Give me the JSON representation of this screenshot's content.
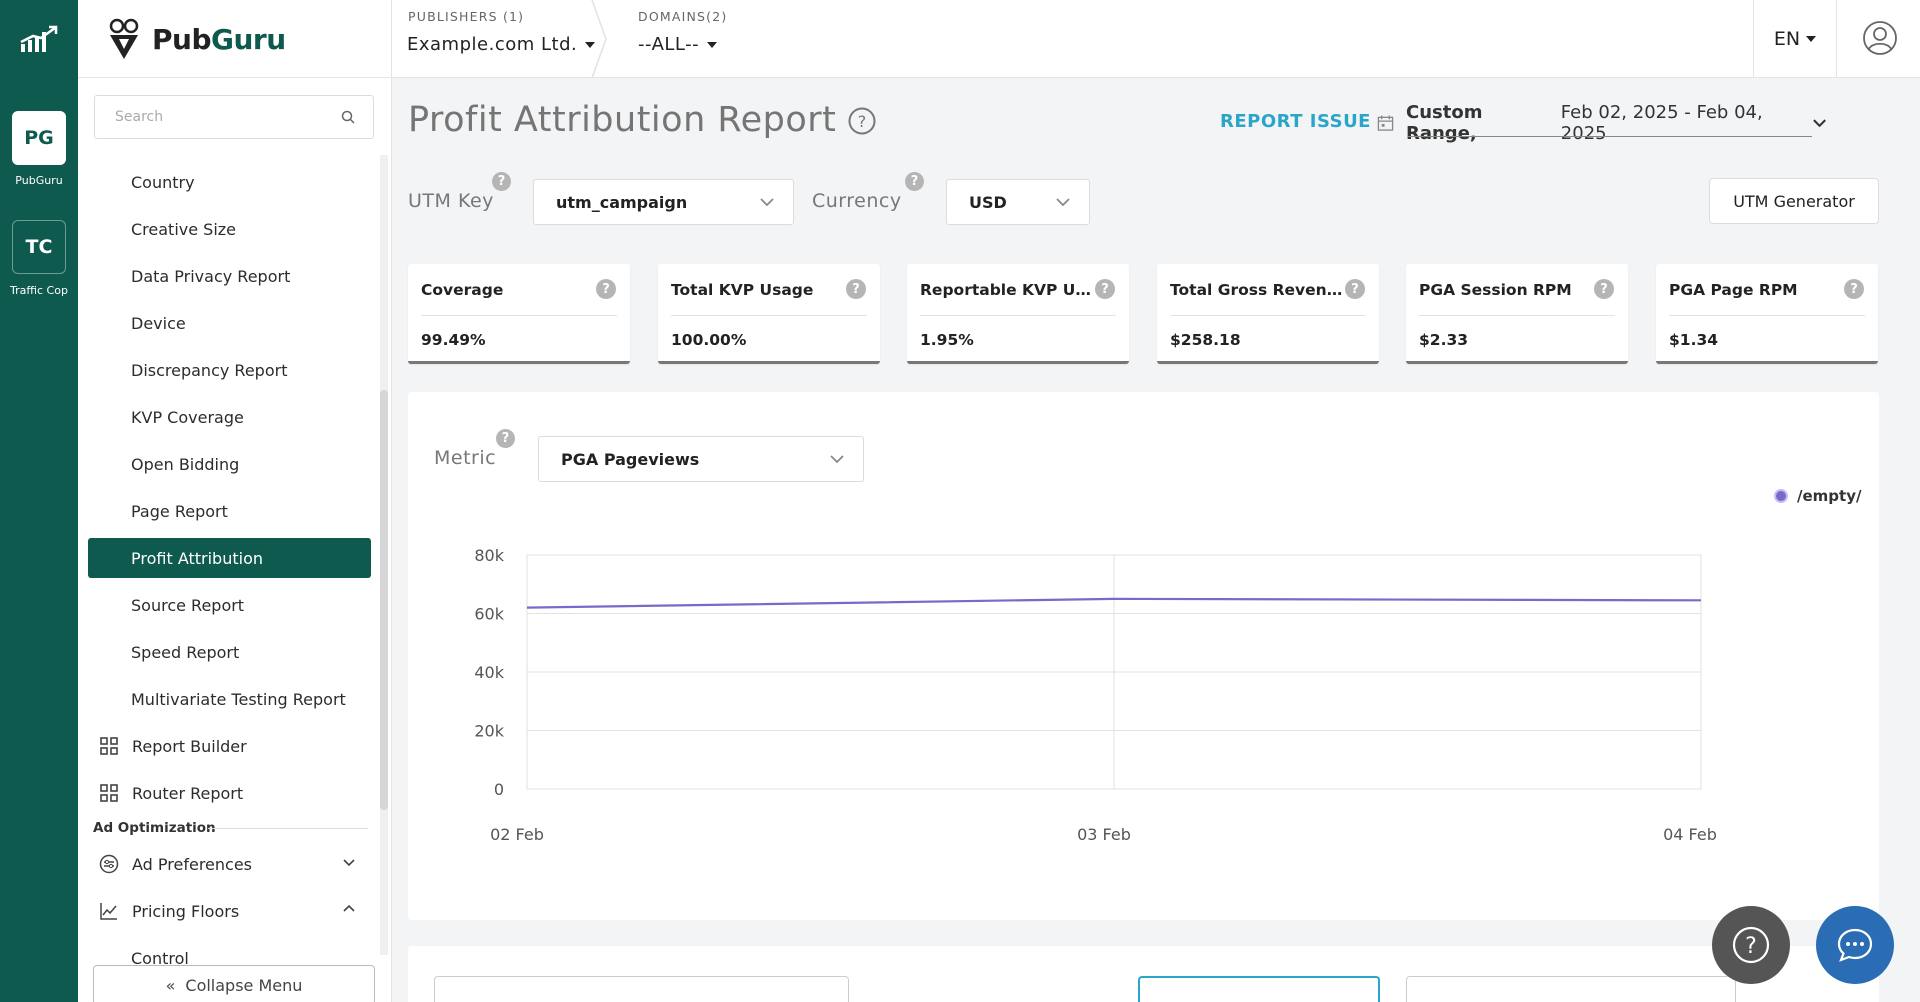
{
  "rail": {
    "apps": [
      {
        "abbr": "PG",
        "label": "PubGuru"
      },
      {
        "abbr": "TC",
        "label": "Traffic Cop"
      }
    ]
  },
  "brand": {
    "part1": "Pub",
    "part2": "Guru"
  },
  "search": {
    "placeholder": "Search"
  },
  "nav": {
    "items": [
      {
        "label": "Country"
      },
      {
        "label": "Creative Size"
      },
      {
        "label": "Data Privacy Report"
      },
      {
        "label": "Device"
      },
      {
        "label": "Discrepancy Report"
      },
      {
        "label": "KVP Coverage"
      },
      {
        "label": "Open Bidding"
      },
      {
        "label": "Page Report"
      },
      {
        "label": "Profit Attribution",
        "active": true
      },
      {
        "label": "Source Report"
      },
      {
        "label": "Speed Report"
      },
      {
        "label": "Multivariate Testing Report"
      }
    ],
    "report_builder": "Report Builder",
    "router_report": "Router Report",
    "section_ad_opt": "Ad Optimization",
    "ad_preferences": "Ad Preferences",
    "pricing_floors": "Pricing Floors",
    "control": "Control",
    "collapse": "Collapse Menu"
  },
  "topbar": {
    "publishers_label": "PUBLISHERS (1)",
    "publisher_value": "Example.com Ltd.",
    "domains_label": "DOMAINS(2)",
    "domain_value": "--ALL--",
    "language": "EN"
  },
  "header": {
    "title": "Profit Attribution Report",
    "report_issue": "REPORT ISSUE",
    "date_label": "Custom Range,",
    "date_range": "Feb 02, 2025 - Feb 04, 2025"
  },
  "filters": {
    "utm_key_label": "UTM Key",
    "utm_key_value": "utm_campaign",
    "currency_label": "Currency",
    "currency_value": "USD",
    "utm_generator": "UTM Generator",
    "help": "?"
  },
  "stats": [
    {
      "title": "Coverage",
      "value": "99.49%"
    },
    {
      "title": "Total KVP Usage",
      "value": "100.00%"
    },
    {
      "title": "Reportable KVP Usage",
      "value": "1.95%"
    },
    {
      "title": "Total Gross Revenue",
      "value": "$258.18"
    },
    {
      "title": "PGA Session RPM",
      "value": "$2.33"
    },
    {
      "title": "PGA Page RPM",
      "value": "$1.34"
    }
  ],
  "chart_panel": {
    "metric_label": "Metric",
    "metric_value": "PGA Pageviews"
  },
  "chart_data": {
    "type": "line",
    "x": [
      "02 Feb",
      "03 Feb",
      "04 Feb"
    ],
    "series": [
      {
        "name": "/empty/",
        "values": [
          62000,
          65000,
          64500
        ],
        "color": "#7b68c8"
      }
    ],
    "yticks": [
      "0",
      "20k",
      "40k",
      "60k",
      "80k"
    ],
    "ylim": [
      0,
      80000
    ],
    "grid": true,
    "legend": "top-right"
  },
  "colors": {
    "brand": "#0f5a4f",
    "accent": "#2aa5c9",
    "series": "#7b68c8"
  }
}
